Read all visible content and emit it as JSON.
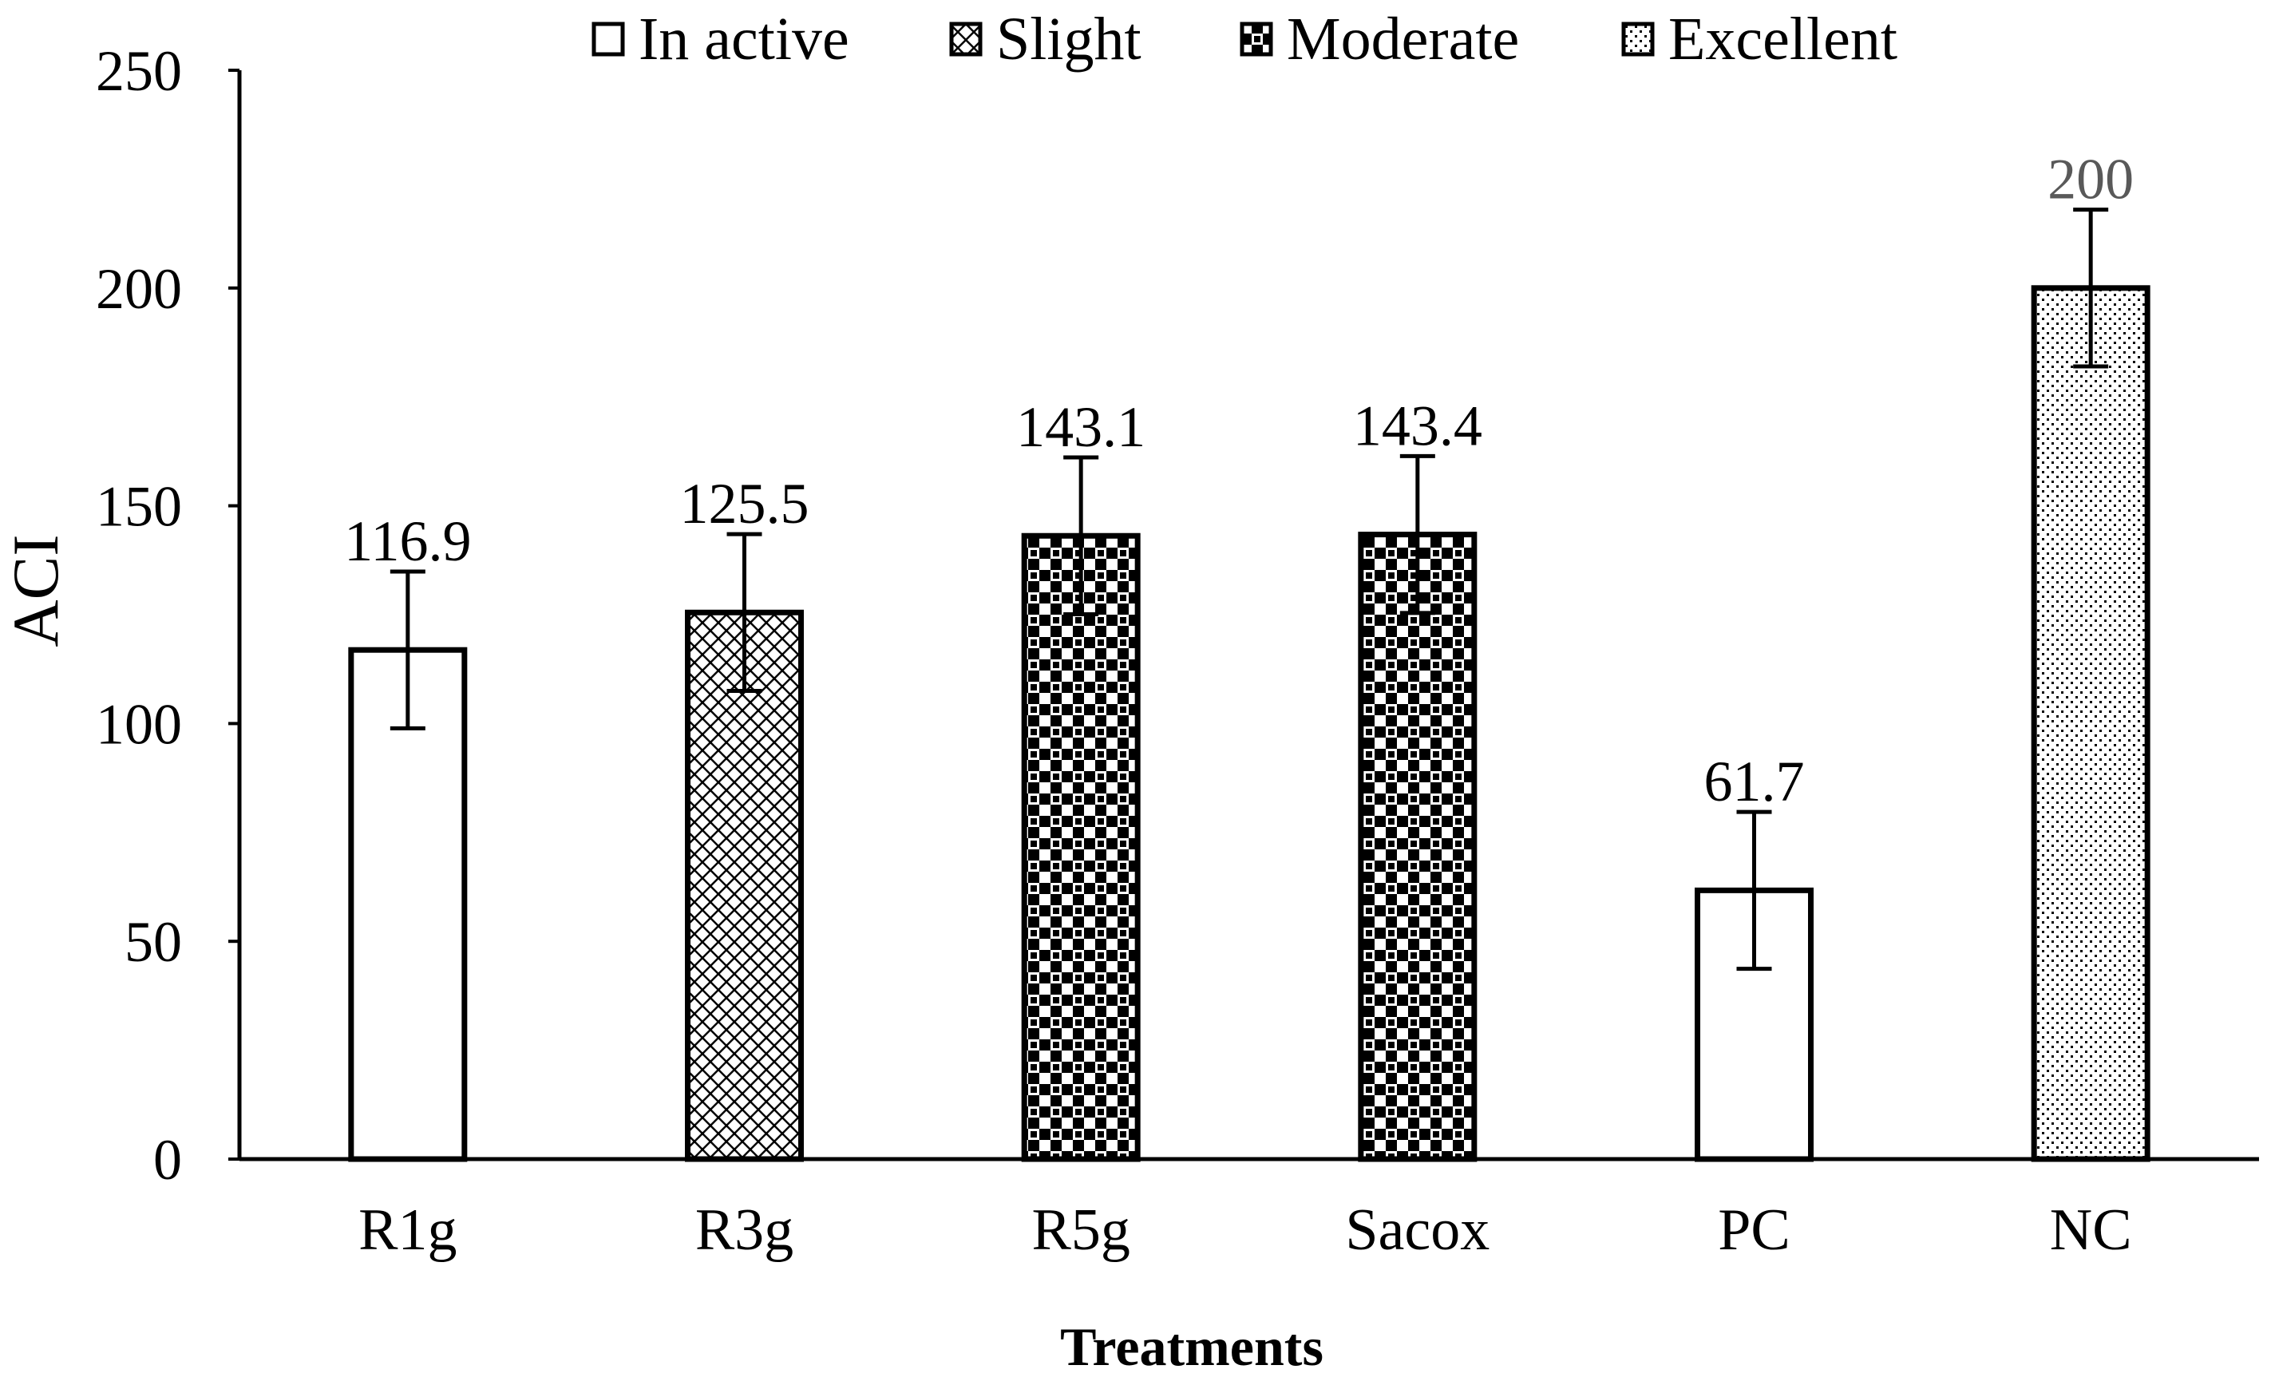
{
  "chart_data": {
    "type": "bar",
    "title": "",
    "xlabel": "Treatments",
    "ylabel": "ACI",
    "ylim": [
      0,
      250
    ],
    "yticks": [
      "0",
      "50",
      "100",
      "150",
      "200",
      "250"
    ],
    "grid": false,
    "legend_position": "top",
    "categories": [
      "R1g",
      "R3g",
      "R5g",
      "Sacox",
      "PC",
      "NC"
    ],
    "values": [
      116.9,
      125.5,
      143.1,
      143.4,
      61.7,
      200
    ],
    "value_labels": [
      "116.9",
      "125.5",
      "143.1",
      "143.4",
      "61.7",
      "200"
    ],
    "error": [
      18,
      18,
      18,
      18,
      18,
      18
    ],
    "bar_class": [
      "In active",
      "Slight",
      "Moderate",
      "Moderate",
      "In active",
      "Excellent"
    ],
    "legend": [
      "In active",
      "Slight",
      "Moderate",
      "Excellent"
    ]
  },
  "colors": {
    "ink": "#000000",
    "fill": "#ffffff",
    "nc_label": "#595959"
  }
}
